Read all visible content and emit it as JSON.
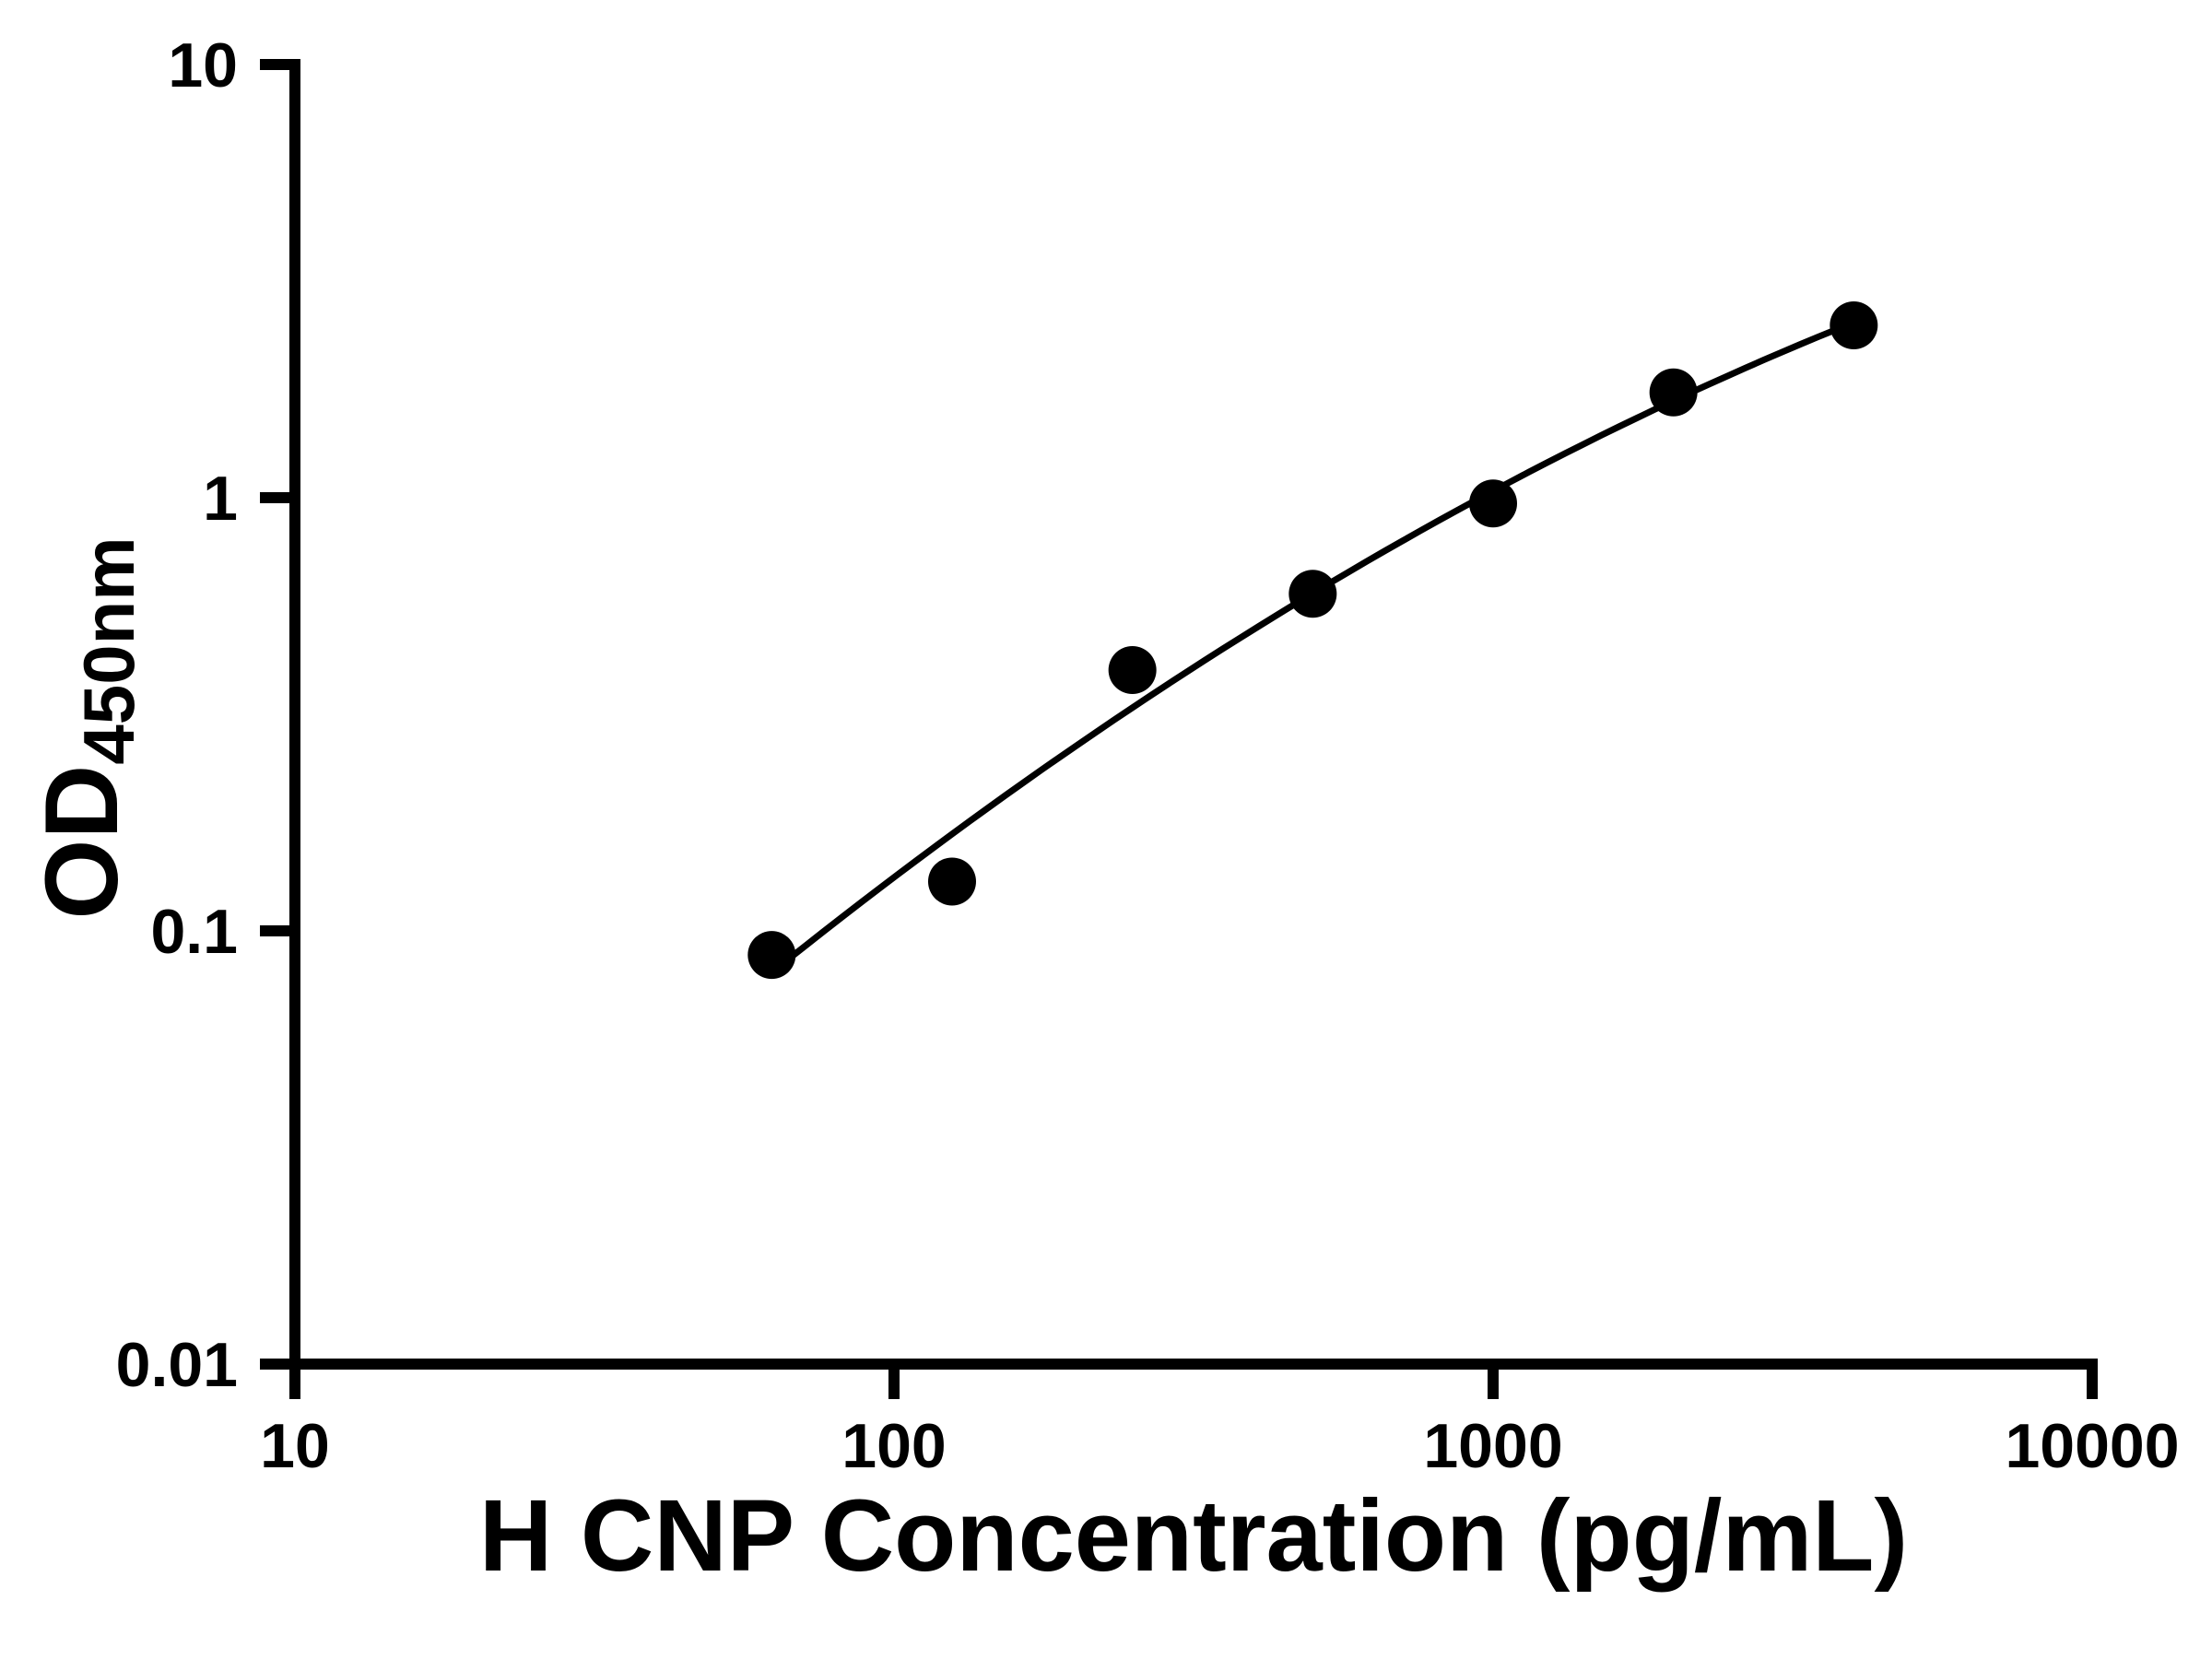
{
  "figure": {
    "background_color": "#ffffff"
  },
  "chart_data": {
    "type": "scatter",
    "variant": "elisa-standard-curve",
    "title": "",
    "xlabel": "H CNP Concentration (pg/mL)",
    "ylabel": "OD450nm",
    "ylabel_main": "OD",
    "ylabel_sub": "450nm",
    "xscale": "log10",
    "yscale": "log10",
    "xlim": [
      10,
      10000
    ],
    "ylim": [
      0.01,
      10
    ],
    "xticks": [
      10,
      100,
      1000,
      10000
    ],
    "xtick_labels": [
      "10",
      "100",
      "1000",
      "10000"
    ],
    "yticks": [
      0.01,
      0.1,
      1,
      10
    ],
    "ytick_labels": [
      "0.01",
      "0.1",
      "1",
      "10"
    ],
    "grid": false,
    "legend": null,
    "axis_color": "#000000",
    "text_color": "#000000",
    "series": [
      {
        "x": [
          62.5,
          125,
          250,
          500,
          1000,
          2000,
          4000
        ],
        "y": [
          0.088,
          0.13,
          0.4,
          0.6,
          0.97,
          1.75,
          2.5
        ],
        "marker": "filled-circle",
        "marker_color": "#000000",
        "line": "smooth-fit-curve",
        "line_color": "#000000"
      }
    ]
  }
}
